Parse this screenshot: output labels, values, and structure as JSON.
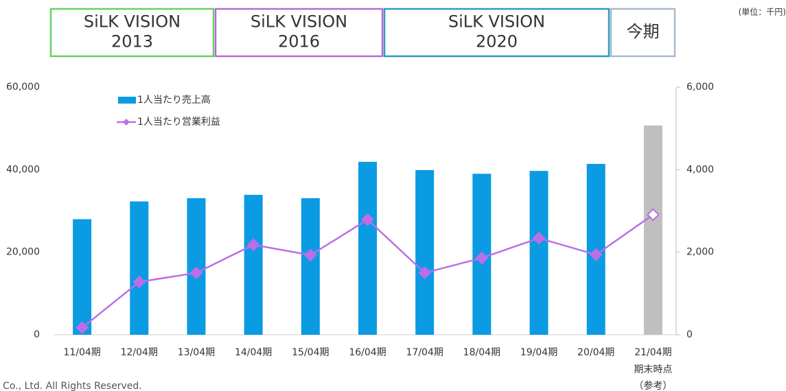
{
  "chart_data": {
    "type": "bar",
    "unit_note": "(単位：千円)",
    "header_boxes": [
      {
        "lines": [
          "SiLK VISION",
          "2013"
        ],
        "color": "#66d166"
      },
      {
        "lines": [
          "SiLK VISION",
          "2016"
        ],
        "color": "#b66ad6"
      },
      {
        "lines": [
          "SiLK VISION",
          "2020"
        ],
        "color": "#2b9cc2"
      },
      {
        "lines": [
          "今期"
        ],
        "color": "#a9b9c9"
      }
    ],
    "categories": [
      "11/04期",
      "12/04期",
      "13/04期",
      "14/04期",
      "15/04期",
      "16/04期",
      "17/04期",
      "18/04期",
      "19/04期",
      "20/04期",
      "21/04期"
    ],
    "last_category_notes": [
      "期末時点",
      "（参考）"
    ],
    "series": [
      {
        "name": "1人当たり売上高",
        "type": "bar",
        "color": "#0a9be3",
        "colors": [
          "#0a9be3",
          "#0a9be3",
          "#0a9be3",
          "#0a9be3",
          "#0a9be3",
          "#0a9be3",
          "#0a9be3",
          "#0a9be3",
          "#0a9be3",
          "#0a9be3",
          "#bfbfbf"
        ],
        "values": [
          28000,
          32300,
          33100,
          33900,
          33100,
          41900,
          39900,
          39000,
          39700,
          41400,
          50700
        ]
      },
      {
        "name": "1人当たり営業利益",
        "type": "line",
        "axis": "y2",
        "color": "#bb6ee8",
        "marker_fills": [
          "#bb6ee8",
          "#bb6ee8",
          "#bb6ee8",
          "#bb6ee8",
          "#bb6ee8",
          "#bb6ee8",
          "#bb6ee8",
          "#bb6ee8",
          "#bb6ee8",
          "#bb6ee8",
          "#ffffff"
        ],
        "values": [
          170,
          1280,
          1500,
          2180,
          1930,
          2790,
          1500,
          1860,
          2340,
          1940,
          2910
        ]
      }
    ],
    "ylim": [
      0,
      60000
    ],
    "yticks": [
      0,
      {
        "value": 20000,
        "label": "20,000"
      },
      {
        "value": 40000,
        "label": "40,000"
      },
      {
        "value": 60000,
        "label": "60,000"
      }
    ],
    "y2lim": [
      0,
      6000
    ],
    "y2ticks": [
      0,
      {
        "value": 2000,
        "label": "2,000"
      },
      {
        "value": 4000,
        "label": "4,000"
      },
      {
        "value": 6000,
        "label": "6,000"
      }
    ],
    "grid": false,
    "legend": "upper left",
    "footer": "c Co., Ltd. All Rights Reserved."
  }
}
